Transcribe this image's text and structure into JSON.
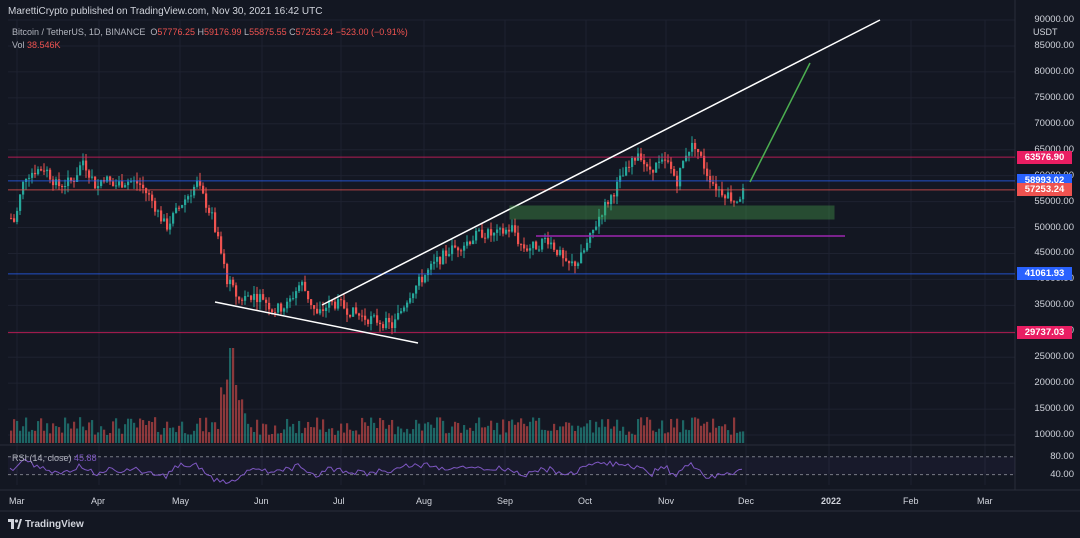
{
  "header": {
    "published": "MarettiCrypto published on TradingView.com, Nov 30, 2021 16:42 UTC"
  },
  "symbol": {
    "name": "Bitcoin / TetherUS, 1D, BINANCE",
    "o_label": "O",
    "o": "57776.25",
    "h_label": "H",
    "h": "59176.99",
    "l_label": "L",
    "l": "55875.55",
    "c_label": "C",
    "c": "57253.24",
    "change": "−523.00 (−0.91%)"
  },
  "volume": {
    "label": "Vol",
    "value": "38.546K"
  },
  "rsi": {
    "label": "RSI (14, close)",
    "value": "45.88"
  },
  "price_axis": {
    "currency": "USDT",
    "ticks": [
      "90000.00",
      "85000.00",
      "80000.00",
      "75000.00",
      "70000.00",
      "65000.00",
      "60000.00",
      "55000.00",
      "50000.00",
      "45000.00",
      "40000.00",
      "35000.00",
      "30000.00",
      "25000.00",
      "20000.00",
      "15000.00",
      "10000.00"
    ],
    "rsi_ticks": [
      "80.00",
      "40.00"
    ]
  },
  "price_badges": [
    {
      "label": "63576.90",
      "color": "#e91e63"
    },
    {
      "label": "58993.02",
      "color": "#2962ff"
    },
    {
      "label": "57253.24",
      "color": "#ef5350"
    },
    {
      "label": "41061.93",
      "color": "#2962ff"
    },
    {
      "label": "29737.03",
      "color": "#e91e63"
    }
  ],
  "time_axis": [
    "Mar",
    "Apr",
    "May",
    "Jun",
    "Jul",
    "Aug",
    "Sep",
    "Oct",
    "Nov",
    "Dec",
    "2022",
    "Feb",
    "Mar"
  ],
  "brand": {
    "name": "TradingView"
  },
  "chart_data": {
    "type": "candlestick",
    "symbol": "BTCUSDT",
    "interval": "1D",
    "exchange": "BINANCE",
    "ylim": [
      10000,
      90000
    ],
    "horizontal_levels": [
      63576.9,
      58993.02,
      57253.24,
      41061.93,
      29737.03
    ],
    "monthly_closes": [
      {
        "month": "Mar",
        "close": 58800
      },
      {
        "month": "Apr",
        "close": 57700
      },
      {
        "month": "May",
        "close": 37300
      },
      {
        "month": "Jun",
        "close": 35000
      },
      {
        "month": "Jul",
        "close": 41500
      },
      {
        "month": "Aug",
        "close": 47100
      },
      {
        "month": "Sep",
        "close": 43800
      },
      {
        "month": "Oct",
        "close": 61300
      },
      {
        "month": "Nov",
        "close": 57253.24
      }
    ],
    "rsi_levels": [
      80,
      40
    ],
    "colors": {
      "up": "#26a69a",
      "down": "#ef5350",
      "trendline": "#ffffff",
      "projection": "#4caf50",
      "zone": "#4caf50",
      "support": "#9c27b0",
      "rsi": "#7e57c2"
    }
  }
}
